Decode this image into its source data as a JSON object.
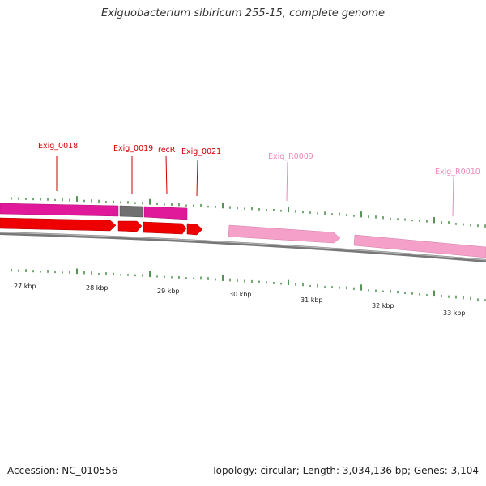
{
  "title": "Exiguobacterium sibiricum 255-15, complete genome",
  "footer": {
    "accession": "Accession: NC_010556",
    "summary": "Topology: circular; Length: 3,034,136 bp; Genes: 3,104"
  },
  "genes": [
    {
      "label": "Exig_0018",
      "color": "#cc0000"
    },
    {
      "label": "Exig_0019",
      "color": "#cc0000"
    },
    {
      "label": "recR",
      "color": "#cc0000"
    },
    {
      "label": "Exig_0021",
      "color": "#cc0000"
    },
    {
      "label": "Exig_R0009",
      "color": "#ee88bb"
    },
    {
      "label": "Exig_R0010",
      "color": "#ee88bb"
    }
  ],
  "ticks": [
    "27 kbp",
    "28 kbp",
    "29 kbp",
    "30 kbp",
    "31 kbp",
    "32 kbp",
    "33 kbp"
  ],
  "colors": {
    "cds": "#ee0000",
    "gene_track": "#e0189a",
    "gene_track_gray": "#707070",
    "rna": "#f4a0c8",
    "backbone": "#777777",
    "gc_marks": "#2a7a2a"
  }
}
